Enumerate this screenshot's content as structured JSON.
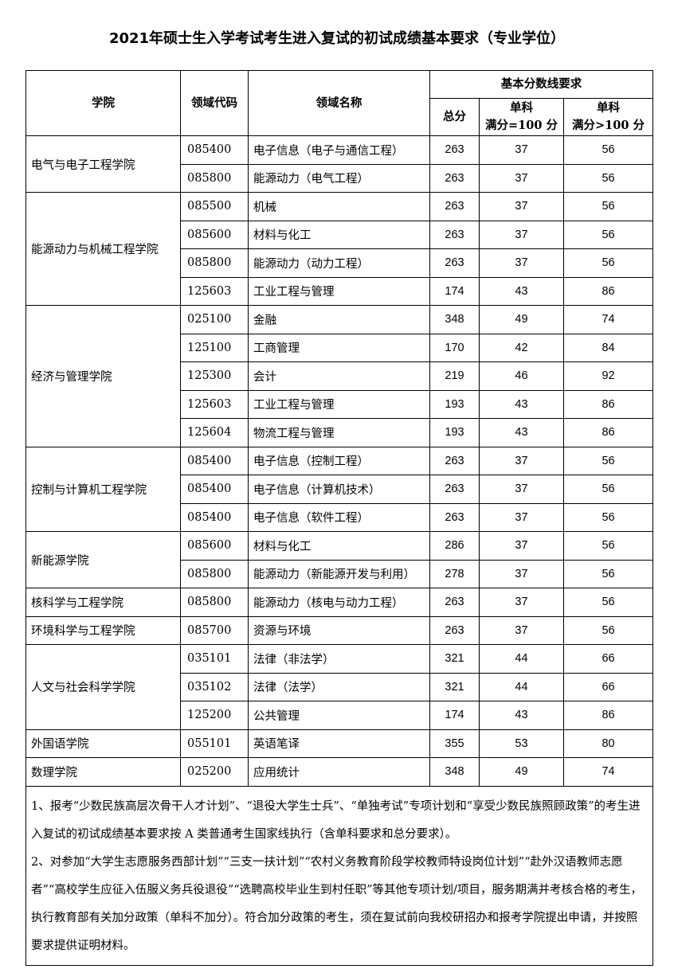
{
  "title": "2021年硕士生入学考试考生进入复试的初试成绩基本要求（专业学位）",
  "headers": {
    "college": "学院",
    "code": "领域代码",
    "name": "领域名称",
    "basic": "基本分数线要求",
    "total": "总分",
    "single100_a": "单科",
    "single100_b": "满分=100 分",
    "singleOver_a": "单科",
    "singleOver_b": "满分>100 分"
  },
  "colleges": [
    {
      "name": "电气与电子工程学院",
      "rows": [
        [
          "085400",
          "电子信息（电子与通信工程）",
          "263",
          "37",
          "56"
        ],
        [
          "085800",
          "能源动力（电气工程）",
          "263",
          "37",
          "56"
        ]
      ]
    },
    {
      "name": "能源动力与机械工程学院",
      "rows": [
        [
          "085500",
          "机械",
          "263",
          "37",
          "56"
        ],
        [
          "085600",
          "材料与化工",
          "263",
          "37",
          "56"
        ],
        [
          "085800",
          "能源动力（动力工程）",
          "263",
          "37",
          "56"
        ],
        [
          "125603",
          "工业工程与管理",
          "174",
          "43",
          "86"
        ]
      ]
    },
    {
      "name": "经济与管理学院",
      "rows": [
        [
          "025100",
          "金融",
          "348",
          "49",
          "74"
        ],
        [
          "125100",
          "工商管理",
          "170",
          "42",
          "84"
        ],
        [
          "125300",
          "会计",
          "219",
          "46",
          "92"
        ],
        [
          "125603",
          "工业工程与管理",
          "193",
          "43",
          "86"
        ],
        [
          "125604",
          "物流工程与管理",
          "193",
          "43",
          "86"
        ]
      ]
    },
    {
      "name": "控制与计算机工程学院",
      "rows": [
        [
          "085400",
          "电子信息（控制工程）",
          "263",
          "37",
          "56"
        ],
        [
          "085400",
          "电子信息（计算机技术）",
          "263",
          "37",
          "56"
        ],
        [
          "085400",
          "电子信息（软件工程）",
          "263",
          "37",
          "56"
        ]
      ]
    },
    {
      "name": "新能源学院",
      "rows": [
        [
          "085600",
          "材料与化工",
          "286",
          "37",
          "56"
        ],
        [
          "085800",
          "能源动力（新能源开发与利用）",
          "278",
          "37",
          "56"
        ]
      ]
    },
    {
      "name": "核科学与工程学院",
      "rows": [
        [
          "085800",
          "能源动力（核电与动力工程）",
          "263",
          "37",
          "56"
        ]
      ]
    },
    {
      "name": "环境科学与工程学院",
      "rows": [
        [
          "085700",
          "资源与环境",
          "263",
          "37",
          "56"
        ]
      ]
    },
    {
      "name": "人文与社会科学学院",
      "rows": [
        [
          "035101",
          "法律（非法学）",
          "321",
          "44",
          "66"
        ],
        [
          "035102",
          "法律（法学）",
          "321",
          "44",
          "66"
        ],
        [
          "125200",
          "公共管理",
          "174",
          "43",
          "86"
        ]
      ]
    },
    {
      "name": "外国语学院",
      "rows": [
        [
          "055101",
          "英语笔译",
          "355",
          "53",
          "80"
        ]
      ]
    },
    {
      "name": "数理学院",
      "rows": [
        [
          "025200",
          "应用统计",
          "348",
          "49",
          "74"
        ]
      ]
    }
  ],
  "notes": [
    "1、报考“少数民族高层次骨干人才计划”、“退役大学生士兵”、“单独考试”专项计划和“享受少数民族照顾政策”的考生进入复试的初试成绩基本要求按 A 类普通考生国家线执行（含单科要求和总分要求）。",
    "2、对参加“大学生志愿服务西部计划”“三支一扶计划”“农村义务教育阶段学校教师特设岗位计划”“赴外汉语教师志愿者”“高校学生应征入伍服义务兵役退役”“选聘高校毕业生到村任职”等其他专项计划/项目，服务期满并考核合格的考生，执行教育部有关加分政策（单科不加分）。符合加分政策的考生，须在复试前向我校研招办和报考学院提出申请，并按照要求提供证明材料。"
  ]
}
